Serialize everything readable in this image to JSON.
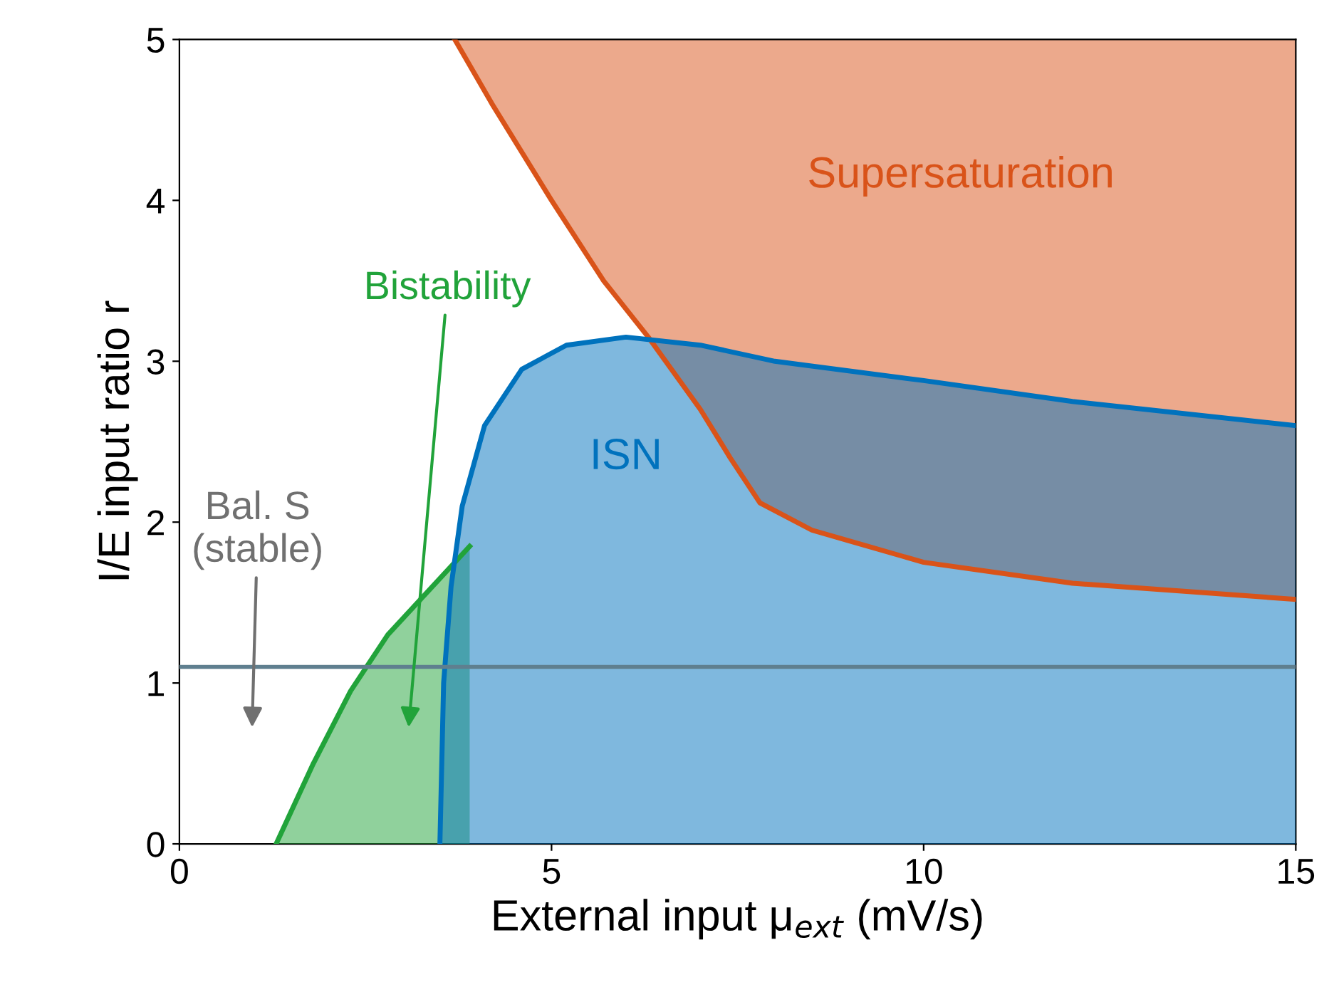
{
  "chart_data": {
    "type": "area",
    "xlabel": "External input μ$_{ext}$ (mV/s)",
    "ylabel": "I/E input ratio r",
    "xlim": [
      0,
      15
    ],
    "ylim": [
      0,
      5
    ],
    "xticks": [
      0,
      5,
      10,
      15
    ],
    "yticks": [
      0,
      1,
      2,
      3,
      4,
      5
    ],
    "grid": false,
    "series": [
      {
        "type": "line",
        "color": "#d95319",
        "x": [
          3.7,
          4.2,
          5,
          5.7,
          6.3,
          7,
          7.4,
          7.8,
          8.5,
          10,
          12,
          15
        ],
        "values": [
          5,
          4.6,
          4.0,
          3.5,
          3.15,
          2.7,
          2.4,
          2.12,
          1.95,
          1.75,
          1.62,
          1.52
        ],
        "lower": [
          5,
          4.6,
          4.0,
          3.5,
          3.15,
          2.7,
          2.4,
          2.12,
          1.95,
          1.75,
          1.62,
          1.52
        ],
        "upper": [
          5,
          5,
          5,
          5,
          5,
          5,
          5,
          5,
          5,
          5,
          5,
          5
        ]
      },
      {
        "color": "#21a33a",
        "x": [
          1.3,
          1.8,
          2.3,
          2.8,
          3.3,
          3.9
        ],
        "values": [
          0,
          0.5,
          0.95,
          1.3,
          1.55,
          1.85
        ]
      },
      {
        "color": "#0072bd",
        "x": [
          3.5,
          3.55,
          3.65,
          3.8,
          4.1,
          4.6,
          5.2,
          6,
          7,
          8,
          10,
          12,
          15
        ],
        "values": [
          0,
          1.0,
          1.6,
          2.1,
          2.6,
          2.95,
          3.1,
          3.15,
          3.1,
          3.0,
          2.88,
          2.75,
          2.6
        ]
      }
    ],
    "ref_lines": [
      {
        "axis": "y",
        "value": 1.1,
        "color": "#5f7f8f"
      }
    ],
    "annotations": [
      "Supersaturation",
      "ISN",
      "Bistability",
      "Bal. S\n(stable)"
    ]
  }
}
